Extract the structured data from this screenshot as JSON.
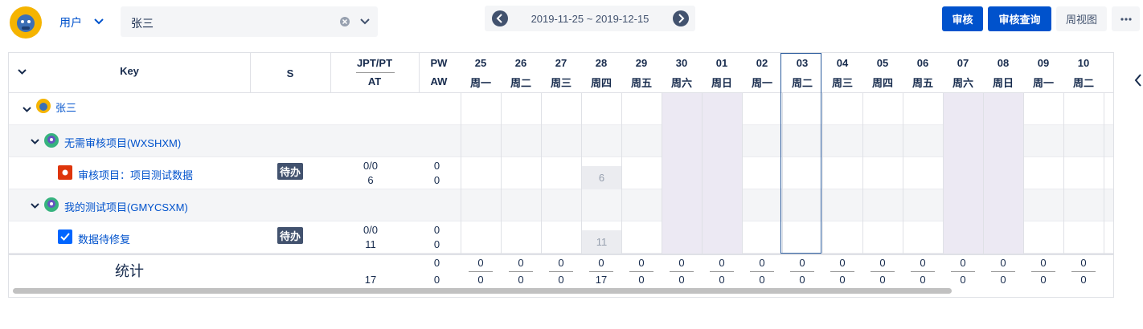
{
  "toolbar": {
    "user_menu": "用户",
    "user_select": "张三",
    "date_range": "2019-11-25 ~ 2019-12-15",
    "buttons": [
      "审核",
      "审核查询",
      "周视图"
    ]
  },
  "table": {
    "headers": {
      "key": "Key",
      "status": "S",
      "jpt_pt": "JPT/PT",
      "at": "AT",
      "pw": "PW",
      "aw": "AW"
    },
    "days": [
      {
        "day": "25",
        "weekday": "周一"
      },
      {
        "day": "26",
        "weekday": "周二"
      },
      {
        "day": "27",
        "weekday": "周三"
      },
      {
        "day": "28",
        "weekday": "周四"
      },
      {
        "day": "29",
        "weekday": "周五"
      },
      {
        "day": "30",
        "weekday": "周六"
      },
      {
        "day": "01",
        "weekday": "周日"
      },
      {
        "day": "02",
        "weekday": "周一"
      },
      {
        "day": "03",
        "weekday": "周二"
      },
      {
        "day": "04",
        "weekday": "周三"
      },
      {
        "day": "05",
        "weekday": "周四"
      },
      {
        "day": "06",
        "weekday": "周五"
      },
      {
        "day": "07",
        "weekday": "周六"
      },
      {
        "day": "08",
        "weekday": "周日"
      },
      {
        "day": "09",
        "weekday": "周一"
      },
      {
        "day": "10",
        "weekday": "周二"
      }
    ],
    "user_row": {
      "name": "张三"
    },
    "groups": [
      {
        "name": "无需审核项目(WXSHXM)",
        "task": {
          "name": "审核项目：项目测试数据",
          "status": "待办",
          "jpt_pt": "0/0",
          "at": 6,
          "pw": 0,
          "aw": 0,
          "day_index": 3,
          "day_value": 6
        }
      },
      {
        "name": "我的测试项目(GMYCSXM)",
        "task": {
          "name": "数据待修复",
          "status": "待办",
          "jpt_pt": "0/0",
          "at": 11,
          "pw": 0,
          "aw": 0,
          "day_index": 3,
          "day_value": 11
        }
      }
    ],
    "summary": {
      "label": "统计",
      "at": 17,
      "pw": 0,
      "aw": 0,
      "top": [
        0,
        0,
        0,
        0,
        0,
        0,
        0,
        0,
        0,
        0,
        0,
        0,
        0,
        0,
        0,
        0
      ],
      "bottom": [
        0,
        0,
        0,
        17,
        0,
        0,
        0,
        0,
        0,
        0,
        0,
        0,
        0,
        0,
        0,
        0
      ]
    }
  }
}
